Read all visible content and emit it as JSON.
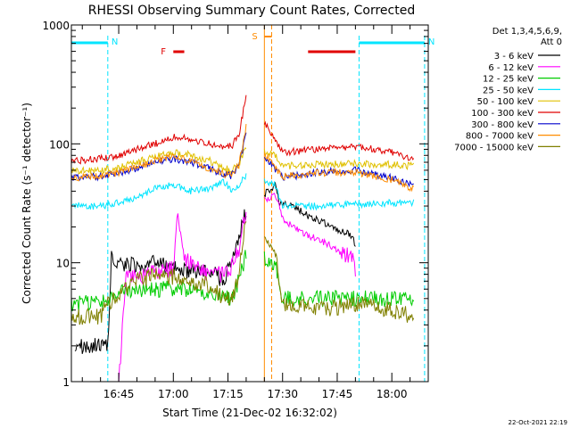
{
  "chart_data": {
    "type": "line",
    "title": "RHESSI Observing Summary Count Rates, Corrected",
    "xlabel": "Start Time (21-Dec-02 16:32:02)",
    "ylabel": "Corrected Count Rate (s⁻¹ detector⁻¹)",
    "yscale": "log",
    "ylim": [
      1,
      1000
    ],
    "xlim": [
      "16:32",
      "18:10"
    ],
    "x_ticks": [
      "16:45",
      "17:00",
      "17:15",
      "17:30",
      "17:45",
      "18:00"
    ],
    "y_ticks": [
      "1",
      "10",
      "100",
      "1000"
    ],
    "legend_header": [
      "Det 1,3,4,5,6,9,",
      "Att 0"
    ],
    "legend_position": "right",
    "timestamp": "22-Oct-2021 22:19",
    "gaps": [
      [
        "17:20",
        "17:25"
      ]
    ],
    "annotations": [
      {
        "label": "N",
        "color": "#00e5ff",
        "kind": "night",
        "intervals": [
          [
            "16:32",
            "16:42"
          ],
          [
            "17:51",
            "18:09"
          ]
        ]
      },
      {
        "label": "F",
        "color": "#e00000",
        "kind": "flag",
        "intervals": [
          [
            "17:00",
            "17:03"
          ],
          [
            "17:37",
            "17:50"
          ]
        ]
      },
      {
        "label": "S",
        "color": "#ff8c00",
        "kind": "saa",
        "intervals": [
          [
            "17:25",
            "17:27"
          ]
        ]
      }
    ],
    "series": [
      {
        "name": "3 - 6 keV",
        "color": "#000000",
        "x": [
          "16:33",
          "16:40",
          "16:42",
          "16:43",
          "16:45",
          "16:50",
          "16:53",
          "16:55",
          "17:00",
          "17:05",
          "17:10",
          "17:14",
          "17:17",
          "17:20",
          "17:28",
          "17:29",
          "17:33",
          "17:37",
          "17:41",
          "17:45",
          "17:49",
          "17:50"
        ],
        "y": [
          2,
          2,
          2,
          11,
          10,
          9.5,
          9.5,
          10,
          9,
          8.5,
          8.5,
          7,
          13,
          28,
          45,
          32,
          30,
          25,
          22,
          19,
          17,
          14
        ]
      },
      {
        "name": "6 - 12 keV",
        "color": "#ff00ff",
        "x": [
          "16:45",
          "16:47",
          "16:53",
          "16:57",
          "17:00",
          "17:01",
          "17:03",
          "17:06",
          "17:10",
          "17:15",
          "17:18",
          "17:20",
          "17:28",
          "17:30",
          "17:33",
          "17:37",
          "17:41",
          "17:45",
          "17:49",
          "17:50"
        ],
        "y": [
          1,
          7.5,
          8,
          8.5,
          9,
          28,
          11,
          9,
          8,
          8,
          13,
          28,
          38,
          24,
          20,
          17,
          15,
          13,
          11,
          9
        ]
      },
      {
        "name": "12 - 25 keV",
        "color": "#00cc00",
        "x": [
          "16:32",
          "16:40",
          "16:42",
          "16:45",
          "16:50",
          "16:55",
          "17:00",
          "17:05",
          "17:10",
          "17:14",
          "17:16",
          "17:18",
          "17:20",
          "17:28",
          "17:30",
          "17:40",
          "17:50",
          "18:00",
          "18:06"
        ],
        "y": [
          4.5,
          4.7,
          5,
          5.5,
          6,
          6,
          6,
          6,
          5.5,
          5,
          5,
          7,
          12,
          10,
          5,
          5,
          5,
          5,
          5
        ]
      },
      {
        "name": "25 - 50 keV",
        "color": "#00e5ff",
        "x": [
          "16:32",
          "16:40",
          "16:45",
          "16:50",
          "16:55",
          "17:00",
          "17:05",
          "17:10",
          "17:14",
          "17:16",
          "17:18",
          "17:20",
          "17:28",
          "17:30",
          "17:40",
          "17:50",
          "18:00",
          "18:06"
        ],
        "y": [
          30,
          30,
          32,
          36,
          42,
          45,
          40,
          42,
          48,
          40,
          45,
          55,
          45,
          30,
          30,
          31,
          32,
          32
        ]
      },
      {
        "name": "50 - 100 keV",
        "color": "#e0c000",
        "x": [
          "16:32",
          "16:40",
          "16:45",
          "16:50",
          "16:55",
          "17:00",
          "17:05",
          "17:10",
          "17:14",
          "17:16",
          "17:18",
          "17:20",
          "17:28",
          "17:30",
          "17:40",
          "17:50",
          "18:00",
          "18:06"
        ],
        "y": [
          60,
          60,
          63,
          70,
          78,
          85,
          80,
          72,
          62,
          60,
          68,
          95,
          80,
          65,
          67,
          68,
          67,
          65
        ]
      },
      {
        "name": "100 - 300 keV",
        "color": "#e00000",
        "x": [
          "16:32",
          "16:40",
          "16:45",
          "16:50",
          "16:55",
          "17:00",
          "17:05",
          "17:10",
          "17:14",
          "17:16",
          "17:18",
          "17:20",
          "17:28",
          "17:30",
          "17:40",
          "17:50",
          "18:00",
          "18:06"
        ],
        "y": [
          72,
          75,
          80,
          90,
          100,
          115,
          108,
          100,
          95,
          95,
          120,
          250,
          110,
          85,
          90,
          95,
          85,
          75
        ]
      },
      {
        "name": "300 - 800 keV",
        "color": "#0000cc",
        "x": [
          "16:32",
          "16:40",
          "16:45",
          "16:50",
          "16:55",
          "17:00",
          "17:05",
          "17:10",
          "17:14",
          "17:16",
          "17:18",
          "17:20",
          "17:28",
          "17:30",
          "17:40",
          "17:50",
          "18:00",
          "18:06"
        ],
        "y": [
          52,
          53,
          56,
          63,
          70,
          75,
          70,
          62,
          55,
          54,
          65,
          120,
          60,
          52,
          58,
          60,
          52,
          44
        ]
      },
      {
        "name": "800 - 7000 keV",
        "color": "#ff8c00",
        "x": [
          "16:32",
          "16:40",
          "16:45",
          "16:50",
          "16:55",
          "17:00",
          "17:05",
          "17:10",
          "17:14",
          "17:16",
          "17:18",
          "17:20",
          "17:28",
          "17:30",
          "17:40",
          "17:50",
          "18:00",
          "18:06"
        ],
        "y": [
          52,
          53,
          57,
          64,
          72,
          78,
          72,
          62,
          55,
          55,
          66,
          140,
          62,
          53,
          57,
          58,
          50,
          42
        ]
      },
      {
        "name": "7000 - 15000 keV",
        "color": "#808000",
        "x": [
          "16:32",
          "16:40",
          "16:42",
          "16:45",
          "16:50",
          "16:55",
          "17:00",
          "17:05",
          "17:10",
          "17:14",
          "17:16",
          "17:18",
          "17:20",
          "17:28",
          "17:30",
          "17:40",
          "17:50",
          "18:00",
          "18:06"
        ],
        "y": [
          3.5,
          3.5,
          4.5,
          5.5,
          7,
          8,
          7.5,
          7,
          6.5,
          5,
          5,
          8,
          25,
          12,
          4.5,
          4,
          4.5,
          4,
          3.5
        ]
      }
    ]
  }
}
